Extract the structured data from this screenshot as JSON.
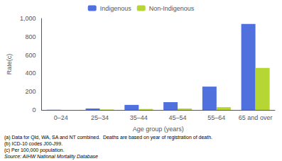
{
  "chart_data": {
    "type": "bar",
    "categories": [
      "0–24",
      "25–34",
      "35–44",
      "45–54",
      "55–64",
      "65 and over"
    ],
    "series": [
      {
        "name": "Indigenous",
        "values": [
          2,
          15,
          55,
          85,
          255,
          940
        ]
      },
      {
        "name": "Non-Indigenous",
        "values": [
          0,
          5,
          10,
          15,
          30,
          460
        ]
      }
    ],
    "xlabel": "Age group (years)",
    "ylabel": "Rate(c)",
    "ylim": [
      0,
      1000
    ],
    "yticks": [
      0,
      200,
      400,
      600,
      800,
      1000
    ],
    "grid": false,
    "legend": "top",
    "annotations": [
      "(a) Data for Qld, WA, SA and NT combined.  Deaths are based on year of registration of death.",
      "(b) ICD-10 codes J00-J99.",
      "(c) Per 100,000 population.",
      "Source: AIHW National Mortality Database"
    ]
  }
}
